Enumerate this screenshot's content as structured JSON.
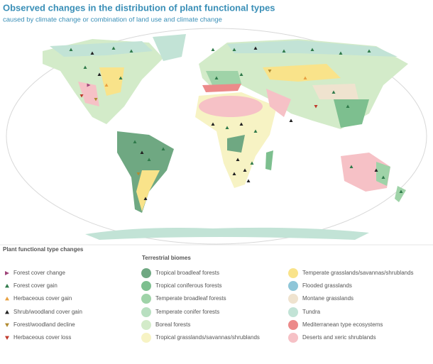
{
  "header": {
    "title": "Observed changes in the distribution of plant functional types",
    "subtitle": "caused by climate change or combination of land use and climate change"
  },
  "legend": {
    "changes": {
      "title": "Plant functional type changes",
      "items": [
        {
          "label": "Forest cover change",
          "color": "#a0467a",
          "marker": "triangle-right"
        },
        {
          "label": "Forest cover gain",
          "color": "#2f7a4a",
          "marker": "triangle-up"
        },
        {
          "label": "Herbaceous cover gain",
          "color": "#e8a040",
          "marker": "triangle-up"
        },
        {
          "label": "Shrub/woodland cover gain",
          "color": "#222222",
          "marker": "triangle-up"
        },
        {
          "label": "Forest/woodland decline",
          "color": "#b08a30",
          "marker": "triangle-down"
        },
        {
          "label": "Herbaceous cover loss",
          "color": "#c0392b",
          "marker": "triangle-down"
        }
      ]
    },
    "biomes": {
      "title": "Terrestrial biomes",
      "items": [
        {
          "label": "Tropical broadleaf forests",
          "color": "#6fa882"
        },
        {
          "label": "Tropical coniferous forests",
          "color": "#7dbf8f"
        },
        {
          "label": "Temperate broadleaf forests",
          "color": "#9fd3a8"
        },
        {
          "label": "Temperate conifer forests",
          "color": "#b8dfc0"
        },
        {
          "label": "Boreal forests",
          "color": "#d3ebc9"
        },
        {
          "label": "Tropical grasslands/savannas/shrublands",
          "color": "#f7f3c4"
        },
        {
          "label": "Temperate grasslands/savannas/shrublands",
          "color": "#f9e38a"
        },
        {
          "label": "Flooded grasslands",
          "color": "#8fc6d8"
        },
        {
          "label": "Montane grasslands",
          "color": "#efe3cf"
        },
        {
          "label": "Tundra",
          "color": "#c2e3d6"
        },
        {
          "label": "Mediterranean type ecosystems",
          "color": "#ec8a8a"
        },
        {
          "label": "Deserts and xeric shrublands",
          "color": "#f6c1c6"
        }
      ]
    }
  }
}
